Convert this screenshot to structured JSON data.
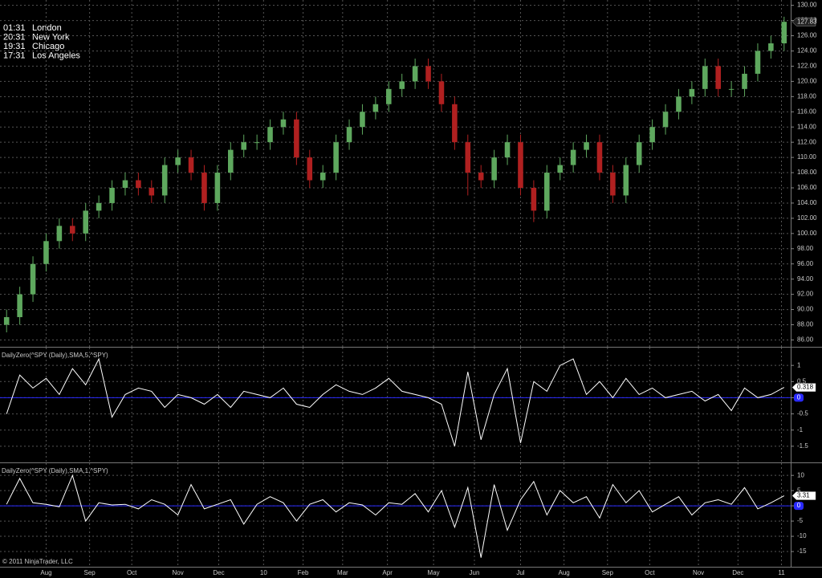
{
  "clocks": [
    {
      "time": "01:31",
      "city": "London"
    },
    {
      "time": "20:31",
      "city": "New York"
    },
    {
      "time": "19:31",
      "city": "Chicago"
    },
    {
      "time": "17:31",
      "city": "Los Angeles"
    }
  ],
  "copyright": "© 2011 NinjaTrader, LLC",
  "chart_data": [
    {
      "type": "candlestick",
      "up_color": "#5ea85e",
      "down_color": "#b02020",
      "last_value": 127.83,
      "xlim": [
        0,
        60
      ],
      "ylim": [
        85.1,
        130.7
      ],
      "grid": true,
      "open": [
        88,
        89,
        92,
        96,
        99,
        101,
        100,
        103,
        104,
        106,
        107,
        106,
        105,
        109,
        110,
        108,
        104,
        108,
        111,
        112,
        112,
        114,
        115,
        110,
        107,
        108,
        112,
        114,
        116,
        117,
        119,
        120,
        122,
        120,
        117,
        112,
        108,
        107,
        110,
        112,
        106,
        103,
        108,
        109,
        111,
        112,
        108,
        105,
        109,
        112,
        114,
        116,
        118,
        119,
        122,
        119,
        119,
        121,
        124,
        125
      ],
      "high": [
        90,
        93,
        97,
        100,
        102,
        102,
        104,
        105,
        107,
        108,
        108,
        107,
        110,
        111,
        111,
        109,
        109,
        112,
        113,
        113,
        115,
        116,
        116,
        111,
        109,
        113,
        115,
        117,
        118,
        120,
        121,
        123,
        123,
        121,
        118,
        113,
        109,
        111,
        113,
        113,
        107,
        109,
        110,
        112,
        113,
        113,
        109,
        110,
        113,
        115,
        117,
        119,
        120,
        123,
        123,
        120,
        122,
        125,
        126,
        128.5
      ],
      "low": [
        87,
        88,
        91,
        95,
        98,
        99,
        99,
        102,
        103,
        105,
        105,
        104,
        104,
        108,
        107,
        103,
        103,
        107,
        110,
        111,
        111,
        113,
        109,
        106,
        106,
        107,
        111,
        113,
        115,
        116,
        118,
        119,
        119,
        116,
        111,
        105,
        106,
        106,
        109,
        105,
        101.5,
        102,
        107,
        108,
        110,
        107,
        104,
        104,
        108,
        111,
        113,
        115,
        117,
        118,
        118,
        118,
        118,
        120,
        123,
        124
      ],
      "close": [
        89,
        92,
        96,
        99,
        101,
        100,
        103,
        104,
        106,
        107,
        106,
        105,
        109,
        110,
        108,
        104,
        108,
        111,
        112,
        112,
        114,
        115,
        110,
        107,
        108,
        112,
        114,
        116,
        117,
        119,
        120,
        122,
        120,
        117,
        112,
        108,
        107,
        110,
        112,
        106,
        103,
        108,
        109,
        111,
        112,
        108,
        105,
        109,
        112,
        114,
        116,
        118,
        119,
        122,
        119,
        119,
        121,
        124,
        125,
        127.83
      ],
      "yticks": [
        {
          "value": 86,
          "label": "86.00"
        },
        {
          "value": 88,
          "label": "88.00"
        },
        {
          "value": 90,
          "label": "90.00"
        },
        {
          "value": 92,
          "label": "92.00"
        },
        {
          "value": 94,
          "label": "94.00"
        },
        {
          "value": 96,
          "label": "96.00"
        },
        {
          "value": 98,
          "label": "98.00"
        },
        {
          "value": 100,
          "label": "100.00"
        },
        {
          "value": 102,
          "label": "102.00"
        },
        {
          "value": 104,
          "label": "104.00"
        },
        {
          "value": 106,
          "label": "106.00"
        },
        {
          "value": 108,
          "label": "108.00"
        },
        {
          "value": 110,
          "label": "110.00"
        },
        {
          "value": 112,
          "label": "112.00"
        },
        {
          "value": 114,
          "label": "114.00"
        },
        {
          "value": 116,
          "label": "116.00"
        },
        {
          "value": 118,
          "label": "118.00"
        },
        {
          "value": 120,
          "label": "120.00"
        },
        {
          "value": 122,
          "label": "122.00"
        },
        {
          "value": 124,
          "label": "124.00"
        },
        {
          "value": 126,
          "label": "126.00"
        },
        {
          "value": 128,
          "label": "128.00"
        },
        {
          "value": 130,
          "label": "130.00"
        }
      ]
    },
    {
      "type": "line",
      "title": "DailyZero(^SPY (Daily),SMA,5,^SPY)",
      "color": "#ffffff",
      "zero_color": "#2a2aff",
      "zero_line": 0,
      "last_value": 0.318,
      "xlim": [
        0,
        60
      ],
      "ylim": [
        -2.0,
        1.55
      ],
      "grid": true,
      "yticks": [
        -1.5,
        -1,
        -0.5,
        0,
        0.5,
        1
      ],
      "values": [
        -0.5,
        0.7,
        0.3,
        0.6,
        0.1,
        0.9,
        0.4,
        1.2,
        -0.6,
        0.1,
        0.3,
        0.2,
        -0.3,
        0.1,
        0.0,
        -0.2,
        0.1,
        -0.3,
        0.2,
        0.1,
        0.0,
        0.3,
        -0.2,
        -0.3,
        0.1,
        0.4,
        0.2,
        0.1,
        0.3,
        0.6,
        0.2,
        0.1,
        0.0,
        -0.2,
        -1.5,
        0.8,
        -1.3,
        0.1,
        0.9,
        -1.4,
        0.5,
        0.2,
        1.0,
        1.2,
        0.1,
        0.5,
        0.0,
        0.6,
        0.1,
        0.3,
        0.0,
        0.1,
        0.2,
        -0.1,
        0.1,
        -0.4,
        0.3,
        0.0,
        0.1,
        0.318
      ]
    },
    {
      "type": "line",
      "title": "DailyZero(^SPY (Daily),SMA,1,^SPY)",
      "color": "#ffffff",
      "zero_color": "#2a2aff",
      "zero_line": 0,
      "last_value": 3.31,
      "xlim": [
        0,
        60
      ],
      "ylim": [
        -20,
        14
      ],
      "grid": true,
      "yticks": [
        -15,
        -10,
        -5,
        0,
        5,
        10
      ],
      "values": [
        0.5,
        9,
        1,
        0.5,
        -0.3,
        10,
        -5,
        1,
        0.3,
        0.5,
        -1,
        2,
        0.5,
        -3,
        7,
        -1,
        0.5,
        2,
        -6,
        0.5,
        3,
        1,
        -5,
        0.5,
        2,
        -2,
        1,
        0.3,
        -3,
        1,
        0.5,
        4,
        -2,
        5,
        -7,
        6,
        -17,
        7,
        -8,
        2,
        8,
        -3,
        5,
        1,
        3,
        -4,
        7,
        1,
        5,
        -2,
        0.5,
        3,
        -3,
        1,
        2,
        0.5,
        6,
        -1,
        1,
        3.31
      ],
      "xticks": [
        {
          "value": 3.5,
          "label": "Aug"
        },
        {
          "value": 6.8,
          "label": "Sep"
        },
        {
          "value": 10,
          "label": "Oct"
        },
        {
          "value": 13.5,
          "label": "Nov"
        },
        {
          "value": 16.6,
          "label": "Dec"
        },
        {
          "value": 20,
          "label": "10"
        },
        {
          "value": 23,
          "label": "Feb"
        },
        {
          "value": 26,
          "label": "Mar"
        },
        {
          "value": 29.4,
          "label": "Apr"
        },
        {
          "value": 32.9,
          "label": "May"
        },
        {
          "value": 36,
          "label": "Jun"
        },
        {
          "value": 39.5,
          "label": "Jul"
        },
        {
          "value": 42.8,
          "label": "Aug"
        },
        {
          "value": 46.1,
          "label": "Sep"
        },
        {
          "value": 49.3,
          "label": "Oct"
        },
        {
          "value": 53,
          "label": "Nov"
        },
        {
          "value": 56,
          "label": "Dec"
        },
        {
          "value": 59.3,
          "label": "11"
        }
      ]
    }
  ]
}
